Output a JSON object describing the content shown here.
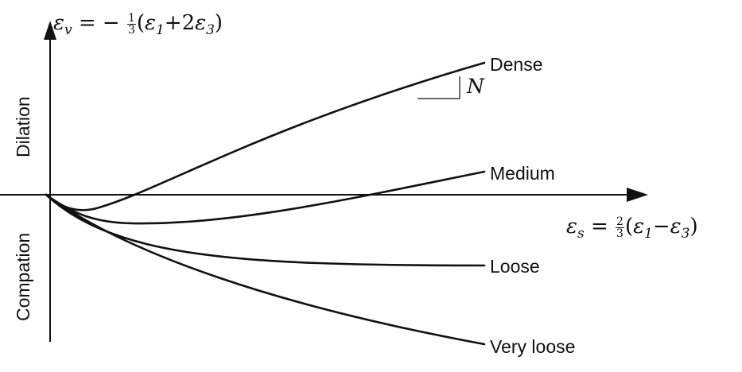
{
  "axes": {
    "y_label": {
      "lhs_symbol": "ε",
      "lhs_sub": "v",
      "eq": "= −",
      "frac_num": "1",
      "frac_den": "3",
      "open": "(",
      "t1_symbol": "ε",
      "t1_sub": "1",
      "op": "+2",
      "t2_symbol": "ε",
      "t2_sub": "3",
      "close": ")"
    },
    "x_label": {
      "lhs_symbol": "ε",
      "lhs_sub": "s",
      "eq": "=",
      "frac_num": "2",
      "frac_den": "3",
      "open": "(",
      "t1_symbol": "ε",
      "t1_sub": "1",
      "op": "−",
      "t2_symbol": "ε",
      "t2_sub": "3",
      "close": ")"
    },
    "upper_region": "Dilation",
    "lower_region": "Compation"
  },
  "curves": [
    {
      "key": "dense",
      "label": "Dense"
    },
    {
      "key": "medium",
      "label": "Medium"
    },
    {
      "key": "loose",
      "label": "Loose"
    },
    {
      "key": "very_loose",
      "label": "Very loose"
    }
  ],
  "slope_marker": {
    "label": "N"
  },
  "colors": {
    "ink": "#111111",
    "background": "#ffffff"
  }
}
